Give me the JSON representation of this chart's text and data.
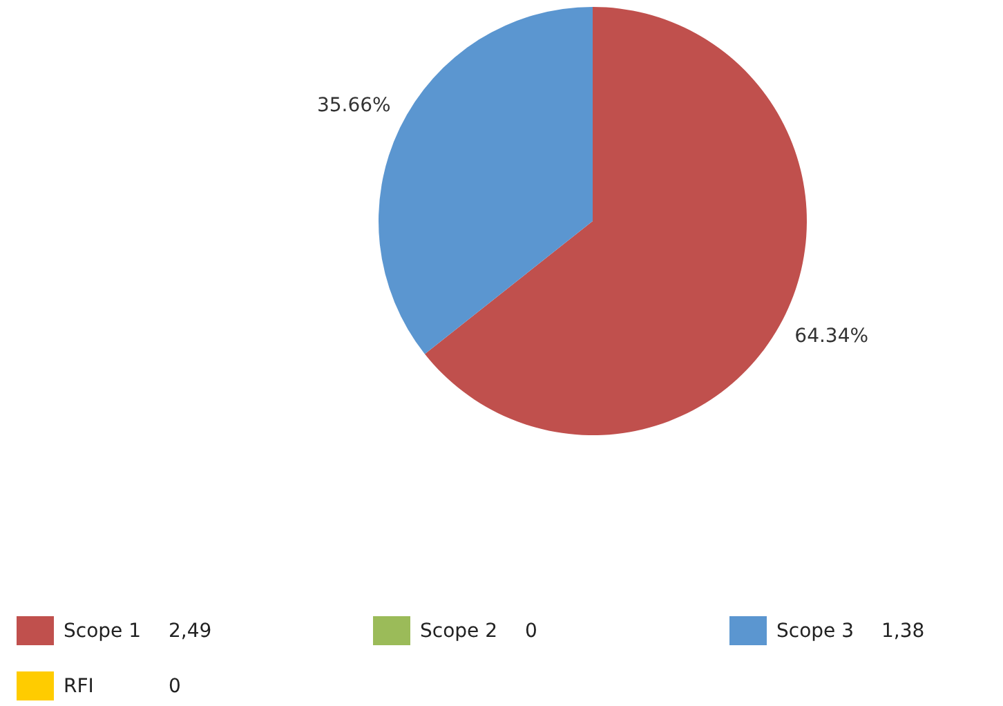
{
  "chart_data": {
    "type": "pie",
    "categories": [
      "Scope 1",
      "Scope 2",
      "Scope 3",
      "RFI"
    ],
    "values": [
      64.34,
      0,
      35.66,
      0
    ],
    "colors": [
      "#c0504d",
      "#9bbb59",
      "#5b96d0",
      "#ffcc00"
    ],
    "value_labels": [
      "64.34%",
      null,
      "35.66%",
      null
    ],
    "annotations": [
      "2,49",
      "0",
      "1,38",
      "0"
    ],
    "legend": "bottom"
  }
}
